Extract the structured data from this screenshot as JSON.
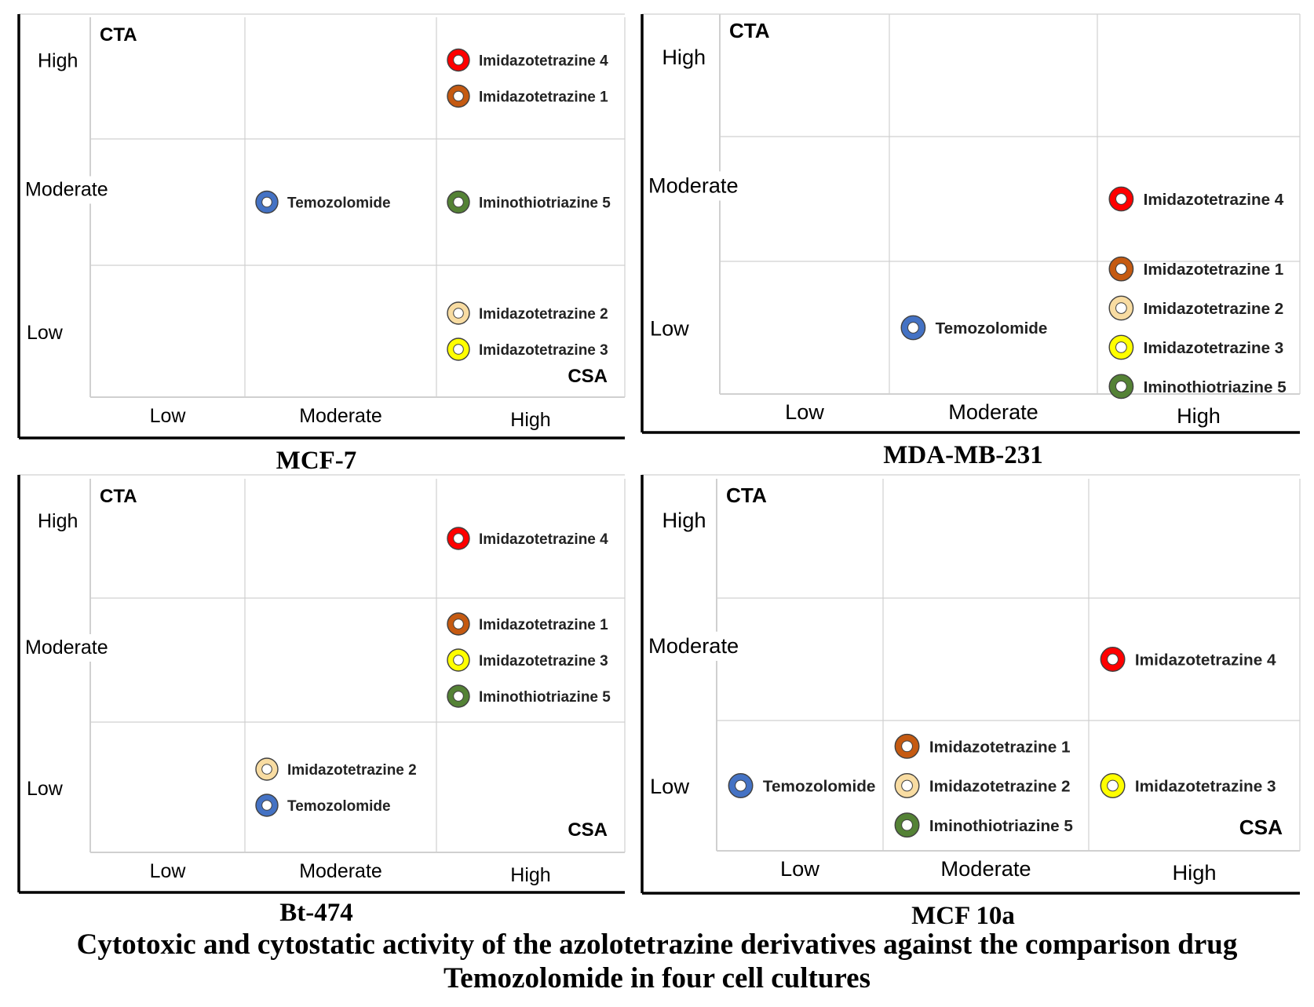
{
  "figure": {
    "caption_line1": "Cytotoxic and cytostatic activity of the azolotetrazine derivatives against the comparison drug",
    "caption_line2": "Temozolomide in four cell cultures"
  },
  "colors": {
    "Temozolomide": "#4472C4",
    "Imidazotetrazine 1": "#C55A11",
    "Imidazotetrazine 2": "#F8DCA2",
    "Imidazotetrazine 3": "#FFFF00",
    "Imidazotetrazine 4": "#FF0000",
    "Iminothiotriazine  5": "#548235"
  },
  "chart_data": [
    {
      "type": "scatter",
      "title": "MCF-7",
      "xlabel": "CSA",
      "ylabel": "CTA",
      "x_categories": [
        "Low",
        "Moderate",
        "High"
      ],
      "y_categories": [
        "Low",
        "Moderate",
        "High"
      ],
      "points": [
        {
          "name": "Imidazotetrazine 4",
          "x": "High",
          "y": "High"
        },
        {
          "name": "Imidazotetrazine 1",
          "x": "High",
          "y": "High"
        },
        {
          "name": "Temozolomide",
          "x": "Moderate",
          "y": "Moderate"
        },
        {
          "name": "Iminothiotriazine  5",
          "x": "High",
          "y": "Moderate"
        },
        {
          "name": "Imidazotetrazine 2",
          "x": "High",
          "y": "Low"
        },
        {
          "name": "Imidazotetrazine 3",
          "x": "High",
          "y": "Low"
        }
      ]
    },
    {
      "type": "scatter",
      "title": "MDA-MB-231",
      "xlabel": "",
      "ylabel": "CTA",
      "x_categories": [
        "Low",
        "Moderate",
        "High"
      ],
      "y_categories": [
        "Low",
        "Moderate",
        "High"
      ],
      "points": [
        {
          "name": "Imidazotetrazine 4",
          "x": "High",
          "y": "Moderate"
        },
        {
          "name": "Temozolomide",
          "x": "Moderate",
          "y": "Low"
        },
        {
          "name": "Imidazotetrazine 1",
          "x": "High",
          "y": "Low"
        },
        {
          "name": "Imidazotetrazine 2",
          "x": "High",
          "y": "Low"
        },
        {
          "name": "Imidazotetrazine 3",
          "x": "High",
          "y": "Low"
        },
        {
          "name": "Iminothiotriazine  5",
          "x": "High",
          "y": "Low"
        }
      ]
    },
    {
      "type": "scatter",
      "title": "Bt-474",
      "xlabel": "CSA",
      "ylabel": "CTA",
      "x_categories": [
        "Low",
        "Moderate",
        "High"
      ],
      "y_categories": [
        "Low",
        "Moderate",
        "High"
      ],
      "points": [
        {
          "name": "Imidazotetrazine 4",
          "x": "High",
          "y": "High"
        },
        {
          "name": "Imidazotetrazine 1",
          "x": "High",
          "y": "Moderate"
        },
        {
          "name": "Imidazotetrazine 3",
          "x": "High",
          "y": "Moderate"
        },
        {
          "name": "Iminothiotriazine  5",
          "x": "High",
          "y": "Moderate"
        },
        {
          "name": "Imidazotetrazine 2",
          "x": "Moderate",
          "y": "Low"
        },
        {
          "name": "Temozolomide",
          "x": "Moderate",
          "y": "Low"
        }
      ]
    },
    {
      "type": "scatter",
      "title": "MCF 10a",
      "xlabel": "CSA",
      "ylabel": "CTA",
      "x_categories": [
        "Low",
        "Moderate",
        "High"
      ],
      "y_categories": [
        "Low",
        "Moderate",
        "High"
      ],
      "points": [
        {
          "name": "Imidazotetrazine 4",
          "x": "High",
          "y": "Moderate"
        },
        {
          "name": "Temozolomide",
          "x": "Low",
          "y": "Low"
        },
        {
          "name": "Imidazotetrazine 1",
          "x": "Moderate",
          "y": "Low"
        },
        {
          "name": "Imidazotetrazine 2",
          "x": "Moderate",
          "y": "Low"
        },
        {
          "name": "Iminothiotriazine  5",
          "x": "Moderate",
          "y": "Low"
        },
        {
          "name": "Imidazotetrazine 3",
          "x": "High",
          "y": "Low"
        }
      ]
    }
  ]
}
